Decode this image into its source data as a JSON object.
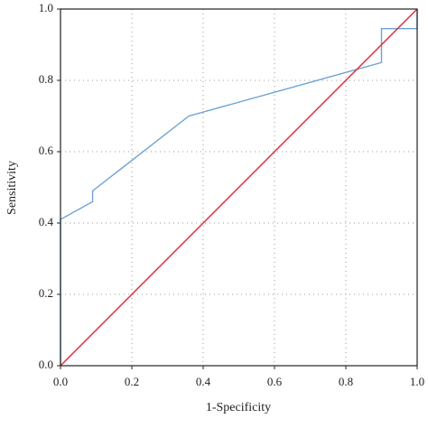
{
  "chart_data": {
    "type": "line",
    "xlabel": "1-Specificity",
    "ylabel": "Sensitivity",
    "xlim": [
      0,
      1
    ],
    "ylim": [
      0,
      1
    ],
    "xticks": [
      {
        "value": 0,
        "label": "0.0"
      },
      0.2,
      0.4,
      0.6,
      0.8,
      {
        "value": 1,
        "label": "1.0"
      }
    ],
    "yticks": [
      {
        "value": 0,
        "label": "0.0"
      },
      0.2,
      0.4,
      0.6,
      0.8,
      {
        "value": 1,
        "label": "1.0"
      }
    ],
    "grid": true,
    "series": [
      {
        "color": "#6fa3d6",
        "x": [
          0,
          0,
          0.09,
          0.09,
          0.36,
          0.9,
          0.9,
          1,
          1
        ],
        "values": [
          0,
          0.41,
          0.46,
          0.49,
          0.7,
          0.85,
          0.945,
          0.945,
          1
        ]
      },
      {
        "color": "#e8262b",
        "x": [
          0,
          1
        ],
        "values": [
          0,
          1
        ]
      }
    ]
  }
}
